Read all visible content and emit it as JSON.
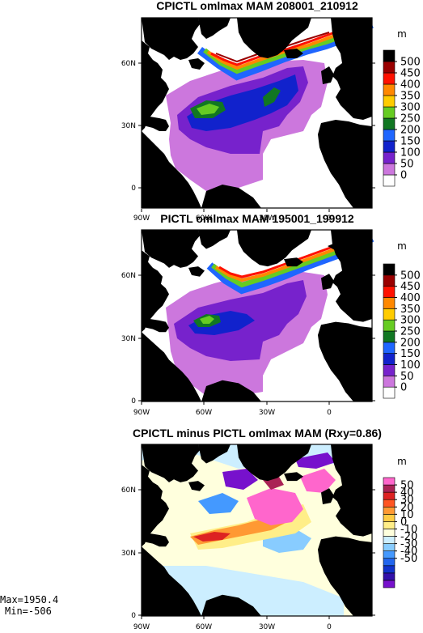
{
  "chart_data": [
    {
      "type": "heatmap",
      "title": "CPICTL omlmax MAM 208001_210912",
      "unit": "m",
      "x_ticks": [
        "90W",
        "60W",
        "30W",
        "0"
      ],
      "y_ticks": [
        "0",
        "30N",
        "60N"
      ],
      "colorbar_labels": [
        "500",
        "450",
        "400",
        "350",
        "300",
        "250",
        "200",
        "150",
        "100",
        "50",
        "0"
      ],
      "colors": [
        "#ffffff",
        "#cc77dd",
        "#7722cc",
        "#1122cc",
        "#1f66ff",
        "#117722",
        "#66cc22",
        "#ffcc00",
        "#ff8800",
        "#ff1100",
        "#990000",
        "#000000"
      ]
    },
    {
      "type": "heatmap",
      "title": "PICTL omlmax MAM 195001_199912",
      "unit": "m",
      "x_ticks": [
        "90W",
        "60W",
        "30W",
        "0"
      ],
      "y_ticks": [
        "0",
        "30N",
        "60N"
      ],
      "colorbar_labels": [
        "500",
        "450",
        "400",
        "350",
        "300",
        "250",
        "200",
        "150",
        "100",
        "50",
        "0"
      ],
      "colors": [
        "#ffffff",
        "#cc77dd",
        "#7722cc",
        "#1122cc",
        "#1f66ff",
        "#117722",
        "#66cc22",
        "#ffcc00",
        "#ff8800",
        "#ff1100",
        "#990000",
        "#000000"
      ]
    },
    {
      "type": "heatmap",
      "title": "CPICTL minus PICTL omlmax MAM (Rxy=0.86)",
      "unit": "m",
      "x_ticks": [
        "90W",
        "60W",
        "30W",
        "0"
      ],
      "y_ticks": [
        "0",
        "30N",
        "60N"
      ],
      "colorbar_labels": [
        "50",
        "40",
        "30",
        "20",
        "10",
        "0",
        "-10",
        "-20",
        "-30",
        "-40",
        "-50"
      ],
      "colors": [
        "#7711cc",
        "#3311aa",
        "#1133cc",
        "#2266ee",
        "#4499ff",
        "#88ccff",
        "#cceeff",
        "#ffffdd",
        "#ffee88",
        "#ffcc44",
        "#ff9933",
        "#ff5522",
        "#dd2222",
        "#aa2255",
        "#ff66cc"
      ],
      "stats": {
        "max": "Max=1950.4",
        "min": "Min=-506"
      }
    }
  ]
}
